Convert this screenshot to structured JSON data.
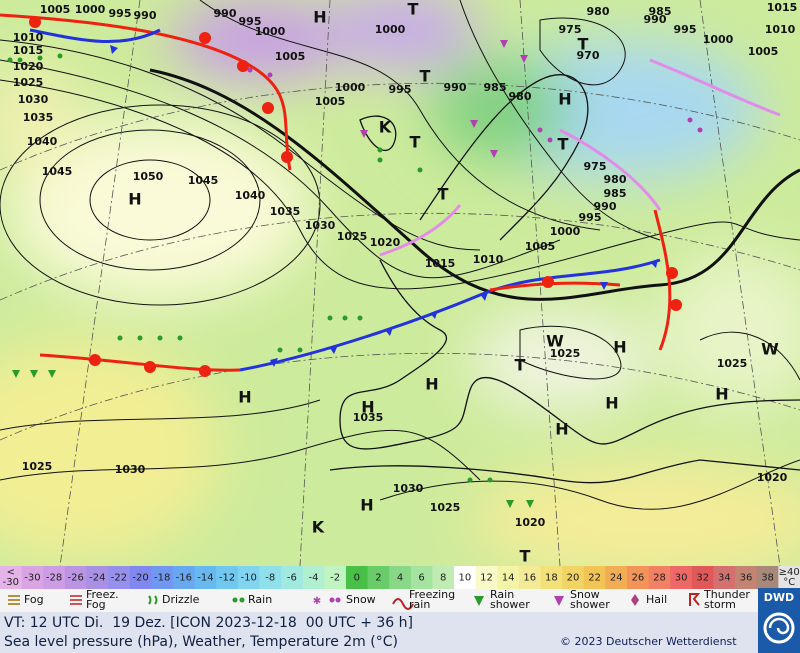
{
  "map": {
    "labels": [
      "1005",
      "1000",
      "995",
      "990",
      "990",
      "995",
      "1000",
      "1005",
      "H",
      "T",
      "1000",
      "1000",
      "1005",
      "995",
      "990",
      "985",
      "980",
      "980",
      "985",
      "990",
      "995",
      "1000",
      "1005",
      "975",
      "970",
      "T",
      "1015",
      "1010",
      "H",
      "T",
      "975",
      "980",
      "985",
      "990",
      "995",
      "1000",
      "1005",
      "1010",
      "1015",
      "1020",
      "1025",
      "1030",
      "1035",
      "1040",
      "1045",
      "1050",
      "H",
      "1045",
      "1040",
      "1035",
      "1030",
      "1025",
      "1020",
      "1015",
      "1010",
      "T",
      "T",
      "T",
      "K",
      "H",
      "H",
      "H",
      "1035",
      "1025",
      "H",
      "T",
      "H",
      "H",
      "H",
      "1025",
      "1025",
      "1030",
      "1030",
      "1025",
      "1020",
      "1020",
      "H",
      "T",
      "W",
      "W",
      "K"
    ]
  },
  "scale": {
    "low": {
      "top": "<",
      "bottom": "-30",
      "color": "#e4b4e8"
    },
    "steps": [
      {
        "value": -30,
        "color": "#d8a4e4"
      },
      {
        "value": -28,
        "color": "#cc9ce4"
      },
      {
        "value": -26,
        "color": "#bc94e4"
      },
      {
        "value": -24,
        "color": "#a890e4"
      },
      {
        "value": -22,
        "color": "#9490ec"
      },
      {
        "value": -20,
        "color": "#8088f0"
      },
      {
        "value": -18,
        "color": "#7098f0"
      },
      {
        "value": -16,
        "color": "#68a8f0"
      },
      {
        "value": -14,
        "color": "#68b8f0"
      },
      {
        "value": -12,
        "color": "#70c8f0"
      },
      {
        "value": -10,
        "color": "#80d4f0"
      },
      {
        "value": -8,
        "color": "#90e0ec"
      },
      {
        "value": -6,
        "color": "#a0e8e0"
      },
      {
        "value": -4,
        "color": "#b0f0d0"
      },
      {
        "value": -2,
        "color": "#c0f4c0"
      },
      {
        "value": 0,
        "color": "#48c048"
      },
      {
        "value": 2,
        "color": "#68cc68"
      },
      {
        "value": 4,
        "color": "#88d888"
      },
      {
        "value": 6,
        "color": "#a4e4a0"
      },
      {
        "value": 8,
        "color": "#c0ecb4"
      },
      {
        "value": 10,
        "color": "#ffffff"
      },
      {
        "value": 12,
        "color": "#fafac8"
      },
      {
        "value": 14,
        "color": "#f4f4a8"
      },
      {
        "value": 16,
        "color": "#f2ea94"
      },
      {
        "value": 18,
        "color": "#f2e078"
      },
      {
        "value": 20,
        "color": "#f2d464"
      },
      {
        "value": 22,
        "color": "#f2c454"
      },
      {
        "value": 24,
        "color": "#f2ac54"
      },
      {
        "value": 26,
        "color": "#f29458"
      },
      {
        "value": 28,
        "color": "#f28064"
      },
      {
        "value": 30,
        "color": "#ee6868"
      },
      {
        "value": 32,
        "color": "#e05858"
      },
      {
        "value": 34,
        "color": "#d47070"
      },
      {
        "value": 36,
        "color": "#c48474"
      },
      {
        "value": 38,
        "color": "#a88878"
      }
    ],
    "high": {
      "top": "≥40",
      "bottom": "°C",
      "color": "#e4e4e4"
    }
  },
  "legend": [
    {
      "label": [
        "Fog"
      ]
    },
    {
      "label": [
        "Freez.",
        "Fog"
      ]
    },
    {
      "label": [
        "Drizzle"
      ]
    },
    {
      "label": [
        "Rain"
      ]
    },
    {
      "label": [
        "Snow"
      ]
    },
    {
      "label": [
        "Freezing",
        "rain"
      ]
    },
    {
      "label": [
        "Rain",
        "shower"
      ]
    },
    {
      "label": [
        "Snow",
        "shower"
      ]
    },
    {
      "label": [
        "Hail"
      ]
    },
    {
      "label": [
        "Thunder",
        "storm"
      ]
    }
  ],
  "footer": {
    "valid_time": "VT: 12 UTC Di.  19 Dez. [ICON 2023-12-18  00 UTC + 36 h]",
    "description": "Sea level pressure (hPa), Weather, Temperature 2m (°C)",
    "copyright": "© 2023 Deutscher Wetterdienst",
    "logo": "DWD"
  }
}
